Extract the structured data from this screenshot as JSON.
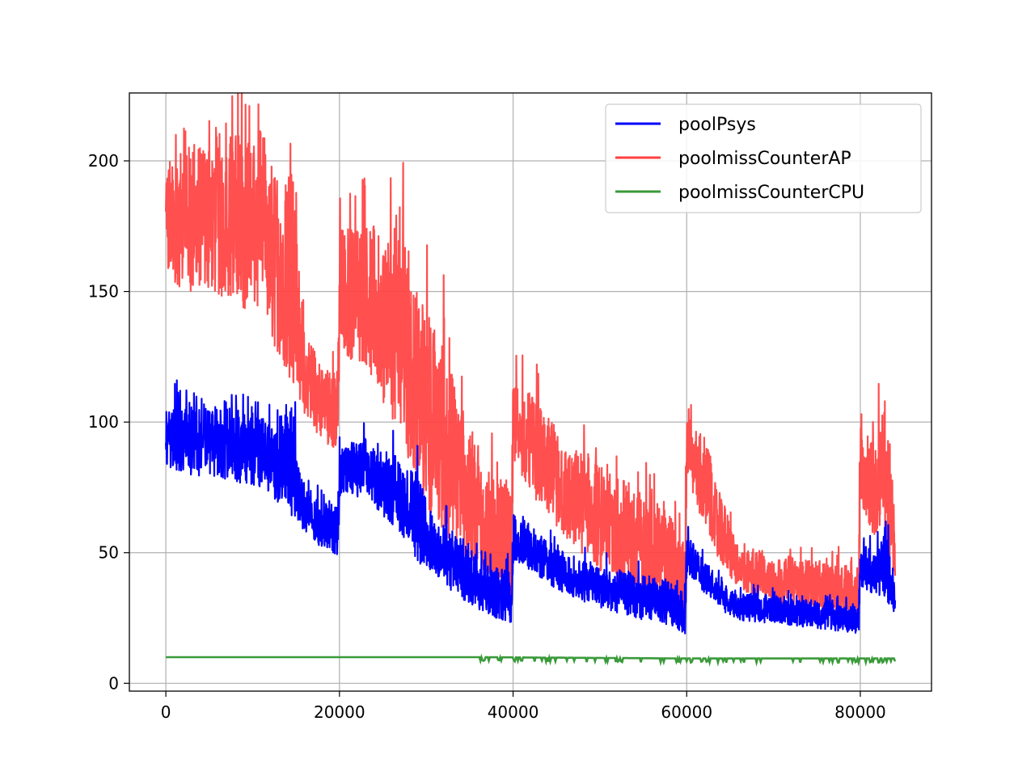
{
  "chart_data": {
    "type": "line",
    "title": "",
    "xlabel": "",
    "ylabel": "",
    "xlim": [
      -4200,
      88200
    ],
    "ylim": [
      -3,
      226
    ],
    "xticks": [
      0,
      20000,
      40000,
      60000,
      80000
    ],
    "xtick_labels": [
      "0",
      "20000",
      "40000",
      "60000",
      "80000"
    ],
    "yticks": [
      0,
      50,
      100,
      150,
      200
    ],
    "ytick_labels": [
      "0",
      "50",
      "100",
      "150",
      "200"
    ],
    "grid": true,
    "legend_position": "top-right",
    "series": [
      {
        "name": "poolPsys",
        "color": "#0000ff",
        "envelope_x": [
          0,
          2000,
          5000,
          8000,
          11000,
          13000,
          14500,
          15500,
          17500,
          19800,
          20000,
          23000,
          25000,
          27000,
          29000,
          31000,
          33000,
          35000,
          37000,
          39800,
          40000,
          43000,
          46000,
          50000,
          54000,
          58000,
          59800,
          60000,
          62000,
          64000,
          66000,
          70000,
          75000,
          79800,
          80000,
          81500,
          83000,
          84000
        ],
        "envelope_low": [
          83,
          80,
          79,
          77,
          75,
          69,
          62,
          60,
          53,
          49,
          70,
          72,
          64,
          58,
          46,
          42,
          34,
          30,
          26,
          23,
          47,
          40,
          34,
          29,
          25,
          22,
          19,
          43,
          34,
          28,
          24,
          23,
          21,
          19,
          37,
          34,
          32,
          26
        ],
        "envelope_high": [
          106,
          108,
          106,
          105,
          104,
          97,
          108,
          79,
          70,
          70,
          91,
          94,
          86,
          89,
          80,
          61,
          60,
          53,
          48,
          43,
          66,
          57,
          50,
          45,
          42,
          40,
          34,
          57,
          48,
          38,
          35,
          33,
          32,
          29,
          55,
          50,
          59,
          38
        ]
      },
      {
        "name": "poolmissCounterAP",
        "color": "#ff4040",
        "envelope_x": [
          0,
          2000,
          5000,
          8000,
          11000,
          13000,
          14500,
          15500,
          17500,
          19800,
          20000,
          23000,
          25000,
          27000,
          29000,
          31000,
          33000,
          35000,
          37000,
          39800,
          40000,
          43000,
          46000,
          50000,
          54000,
          58000,
          59800,
          60000,
          62000,
          64000,
          66000,
          70000,
          75000,
          79800,
          80000,
          81500,
          83000,
          84000
        ],
        "envelope_low": [
          155,
          150,
          150,
          145,
          140,
          125,
          115,
          105,
          95,
          88,
          125,
          122,
          108,
          95,
          75,
          62,
          53,
          45,
          38,
          30,
          85,
          68,
          55,
          43,
          35,
          30,
          24,
          78,
          60,
          45,
          35,
          31,
          28,
          23,
          70,
          55,
          50,
          38
        ],
        "envelope_high": [
          203,
          206,
          210,
          212,
          214,
          190,
          208,
          140,
          125,
          120,
          175,
          178,
          172,
          182,
          150,
          140,
          122,
          95,
          82,
          75,
          118,
          108,
          92,
          86,
          75,
          66,
          54,
          102,
          95,
          72,
          52,
          49,
          47,
          44,
          102,
          95,
          108,
          65
        ]
      },
      {
        "name": "poolmissCounterCPU",
        "color": "#3a9a3a",
        "x": [
          0,
          36000,
          60000,
          80000,
          84000
        ],
        "values": [
          10,
          10,
          9.5,
          9.5,
          9.5
        ],
        "note_band_low": [
          10,
          9,
          8.5,
          8.5,
          8.5
        ]
      }
    ]
  }
}
